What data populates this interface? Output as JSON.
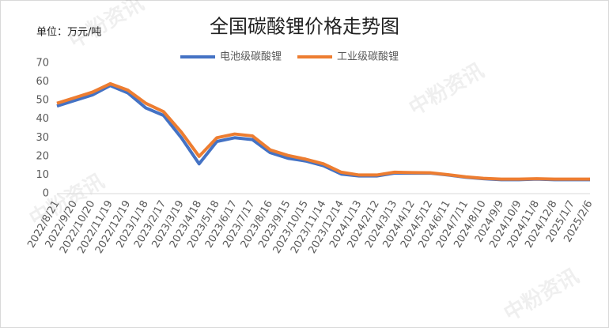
{
  "chart_data": {
    "type": "line",
    "title": "全国碳酸锂价格走势图",
    "unit_label": "单位：万元/吨",
    "watermark": "中粉资讯",
    "categories": [
      "2022/8/21",
      "2022/9/20",
      "2022/10/20",
      "2022/11/19",
      "2022/12/19",
      "2023/1/18",
      "2023/2/17",
      "2023/3/19",
      "2023/4/18",
      "2023/5/18",
      "2023/6/17",
      "2023/7/17",
      "2023/8/16",
      "2023/9/15",
      "2023/10/15",
      "2023/11/14",
      "2023/12/14",
      "2024/1/13",
      "2024/2/12",
      "2024/3/13",
      "2024/4/12",
      "2024/5/12",
      "2024/6/11",
      "2024/7/11",
      "2024/8/10",
      "2024/9/9",
      "2024/10/9",
      "2024/11/8",
      "2024/12/8",
      "2025/1/7",
      "2025/2/6"
    ],
    "series": [
      {
        "name": "电池级碳酸锂",
        "color": "#4472c4",
        "values": [
          47,
          50,
          53,
          58,
          54,
          46,
          42,
          30,
          16,
          28,
          30,
          29,
          22,
          19,
          17.5,
          15,
          10.5,
          9.5,
          9.5,
          11,
          11,
          11,
          10,
          8.8,
          8,
          7.5,
          7.5,
          7.8,
          7.5,
          7.5,
          7.5
        ]
      },
      {
        "name": "工业级碳酸锂",
        "color": "#ed7d31",
        "values": [
          48.5,
          51.5,
          54.5,
          59,
          55.5,
          48.5,
          44,
          33,
          20,
          30,
          32,
          31,
          23.5,
          20.5,
          18.5,
          16,
          11.5,
          10,
          10,
          11.5,
          11.3,
          11.2,
          10.2,
          9,
          8.2,
          7.8,
          7.8,
          8,
          7.8,
          7.8,
          7.8
        ]
      }
    ],
    "ylim": [
      0,
      70
    ],
    "yticks": [
      0,
      10,
      20,
      30,
      40,
      50,
      60,
      70
    ],
    "legend": "top"
  }
}
